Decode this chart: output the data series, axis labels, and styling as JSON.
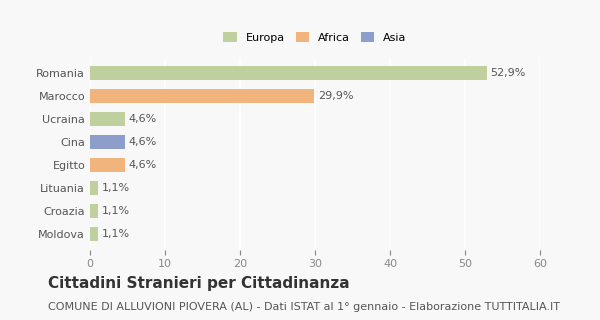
{
  "categories": [
    "Romania",
    "Marocco",
    "Ucraina",
    "Cina",
    "Egitto",
    "Lituania",
    "Croazia",
    "Moldova"
  ],
  "values": [
    52.9,
    29.9,
    4.6,
    4.6,
    4.6,
    1.1,
    1.1,
    1.1
  ],
  "labels": [
    "52,9%",
    "29,9%",
    "4,6%",
    "4,6%",
    "4,6%",
    "1,1%",
    "1,1%",
    "1,1%"
  ],
  "colors": [
    "#b5c98e",
    "#f0a868",
    "#b5c98e",
    "#7a8fc4",
    "#f0a868",
    "#b5c98e",
    "#b5c98e",
    "#b5c98e"
  ],
  "legend_labels": [
    "Europa",
    "Africa",
    "Asia"
  ],
  "legend_colors": [
    "#b5c98e",
    "#f0a868",
    "#7a8fc4"
  ],
  "xlim": [
    0,
    60
  ],
  "xticks": [
    0,
    10,
    20,
    30,
    40,
    50,
    60
  ],
  "title": "Cittadini Stranieri per Cittadinanza",
  "subtitle": "COMUNE DI ALLUVIONI PIOVERA (AL) - Dati ISTAT al 1° gennaio - Elaborazione TUTTITALIA.IT",
  "title_fontsize": 11,
  "subtitle_fontsize": 8,
  "label_fontsize": 8,
  "tick_fontsize": 8,
  "background_color": "#f8f8f8"
}
